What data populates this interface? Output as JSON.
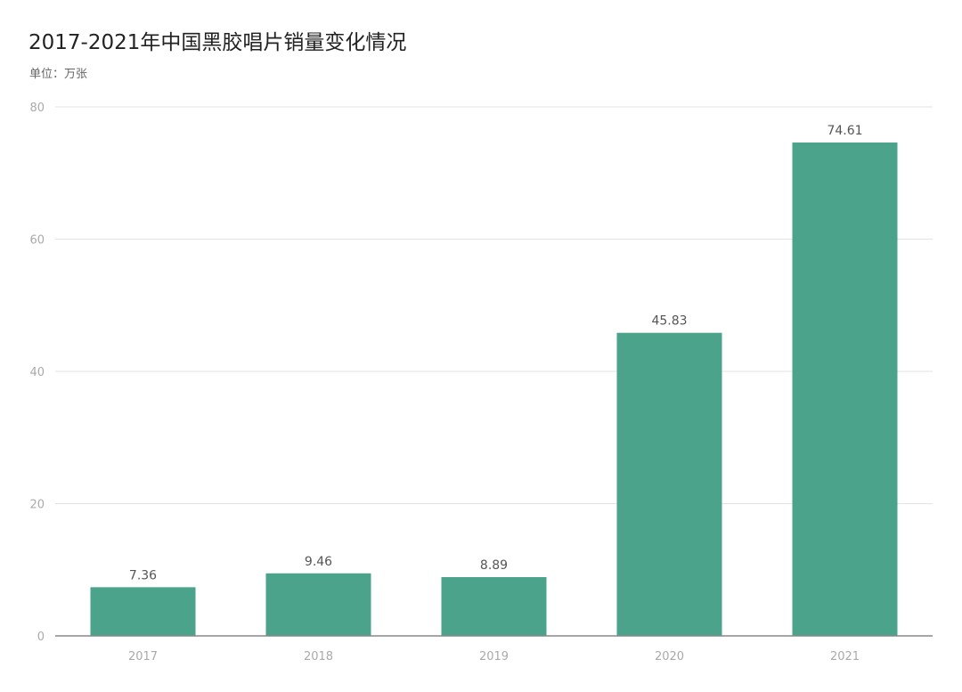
{
  "chart_data": {
    "type": "bar",
    "title": "2017-2021年中国黑胶唱片销量变化情况",
    "subtitle": "单位：万张",
    "categories": [
      "2017",
      "2018",
      "2019",
      "2020",
      "2021"
    ],
    "values": [
      7.36,
      9.46,
      8.89,
      45.83,
      74.61
    ],
    "value_labels": [
      "7.36",
      "9.46",
      "8.89",
      "45.83",
      "74.61"
    ],
    "ylim": [
      0,
      80
    ],
    "yticks": [
      0,
      20,
      40,
      60,
      80
    ],
    "grid": true,
    "bar_color": "#4aa38a",
    "grid_color": "#e3e3e3",
    "axis_color": "#888888"
  }
}
